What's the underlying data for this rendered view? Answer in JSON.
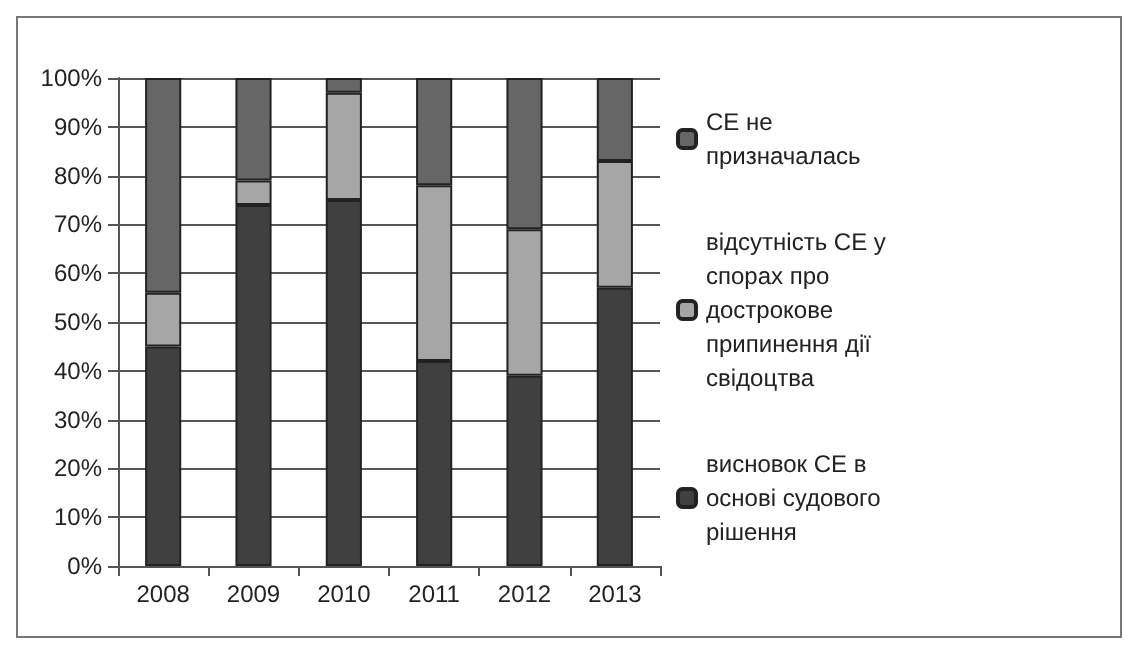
{
  "chart_data": {
    "type": "bar",
    "stacked": true,
    "categories": [
      "2008",
      "2009",
      "2010",
      "2011",
      "2012",
      "2013"
    ],
    "series": [
      {
        "name": "висновок СЕ в основі судового рішення",
        "color": "#404040",
        "values": [
          45,
          74,
          75,
          42,
          39,
          57
        ]
      },
      {
        "name": "відсутність СЕ у спорах про дострокове припинення дії свідоцтва",
        "color": "#a6a6a6",
        "values": [
          11,
          5,
          22,
          36,
          30,
          26
        ]
      },
      {
        "name": "СЕ не призначалась",
        "color": "#666666",
        "values": [
          44,
          21,
          3,
          22,
          31,
          17
        ]
      }
    ],
    "ylim": [
      0,
      100
    ],
    "yticks": [
      {
        "value": 0,
        "label": "0%"
      },
      {
        "value": 10,
        "label": "10%"
      },
      {
        "value": 20,
        "label": "20%"
      },
      {
        "value": 30,
        "label": "30%"
      },
      {
        "value": 40,
        "label": "40%"
      },
      {
        "value": 50,
        "label": "50%"
      },
      {
        "value": 60,
        "label": "60%"
      },
      {
        "value": 70,
        "label": "70%"
      },
      {
        "value": 80,
        "label": "80%"
      },
      {
        "value": 90,
        "label": "90%"
      },
      {
        "value": 100,
        "label": "100%"
      }
    ],
    "grid": true,
    "legend": "right"
  }
}
